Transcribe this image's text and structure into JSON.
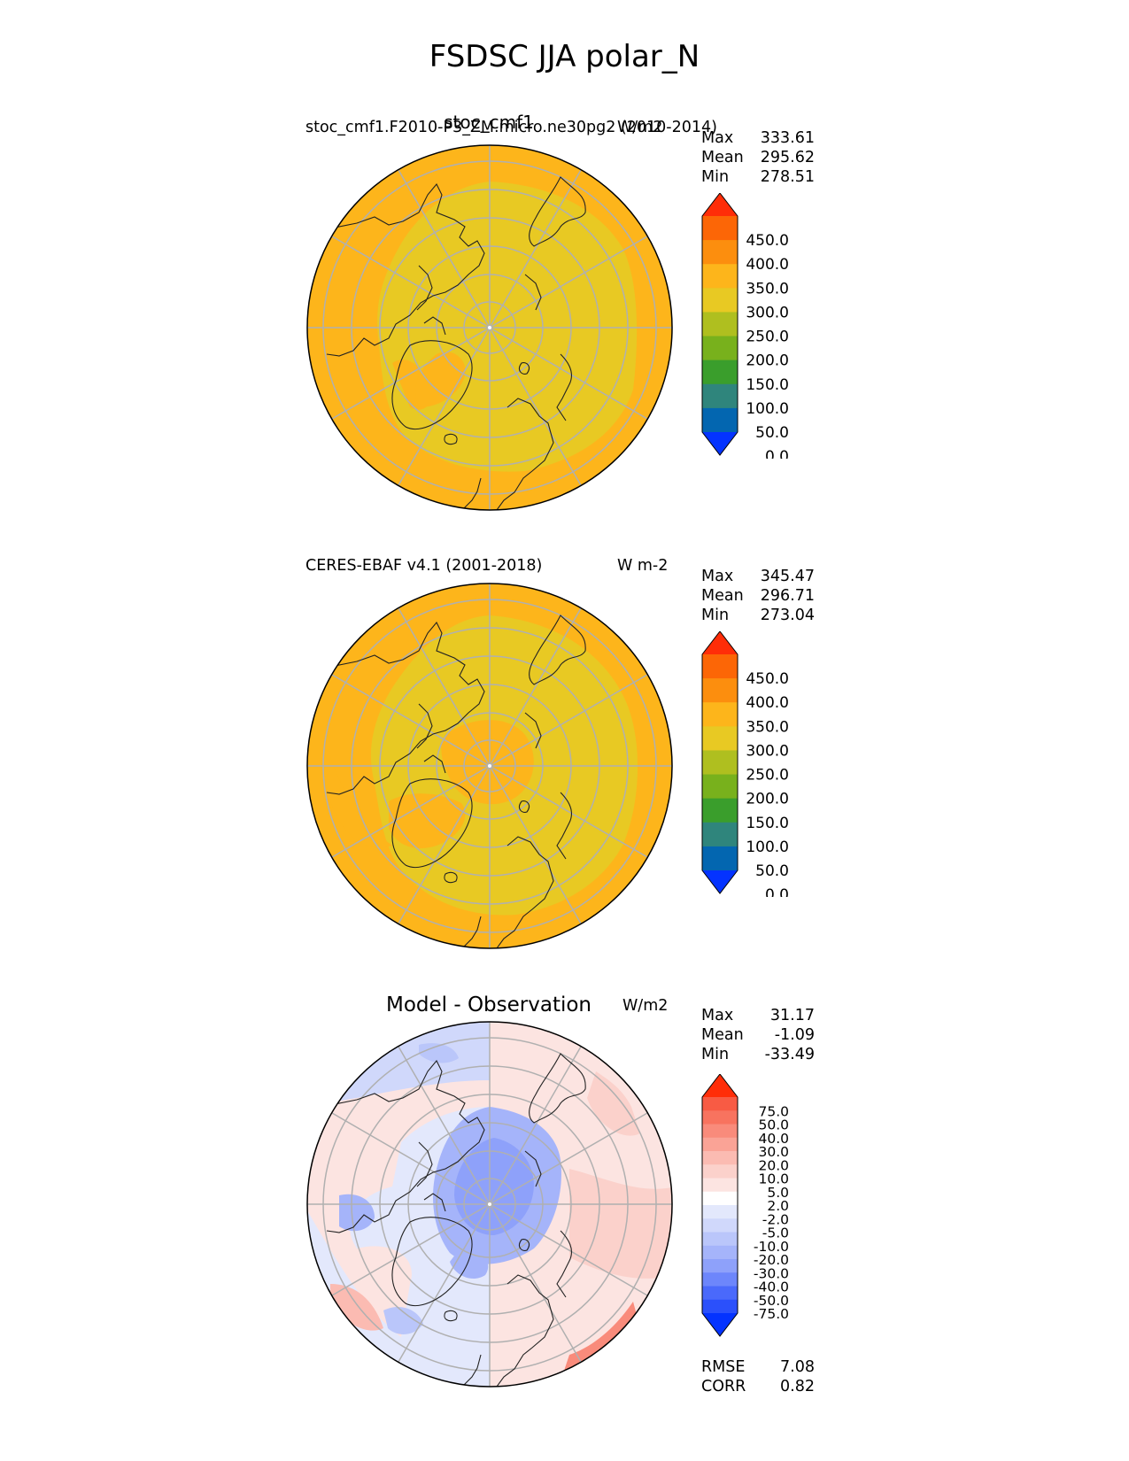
{
  "figure_title": "FSDSC JJA polar_N",
  "colors": {
    "seq_levels": [
      "#0433ff",
      "#0366b0",
      "#2f857c",
      "#3a9e2c",
      "#78b11c",
      "#afbf1f",
      "#e8c923",
      "#fdb51b",
      "#fc8e0e",
      "#fc6606",
      "#ff2d08"
    ],
    "diff_levels": [
      "#0433ff",
      "#2b50fb",
      "#4a69fb",
      "#6d86fb",
      "#8ea1fa",
      "#a5b4fa",
      "#bac6fa",
      "#d0d8fb",
      "#e3e8fc",
      "#ffffff",
      "#fce4e1",
      "#fbd1cb",
      "#fbbbb2",
      "#faa396",
      "#f98b7b",
      "#f8735f",
      "#f85b44",
      "#ff2d08"
    ],
    "gridline": "#b0b0b0",
    "coast": "#222222"
  },
  "panels": [
    {
      "id": "test",
      "center_title": "stoc_cmf1",
      "left_title": "stoc_cmf1.F2010-P3_ZM.micro.ne30pg2 (2010-2014)",
      "right_title": "W/m2",
      "stats": {
        "max_label": "Max",
        "max": "333.61",
        "mean_label": "Mean",
        "mean": "295.62",
        "min_label": "Min",
        "min": "278.51"
      },
      "colorbar_ticks": [
        "450.0",
        "400.0",
        "350.0",
        "300.0",
        "250.0",
        "200.0",
        "150.0",
        "100.0",
        "50.0",
        "0.0"
      ]
    },
    {
      "id": "ref",
      "center_title": "",
      "left_title": "CERES-EBAF v4.1 (2001-2018)",
      "right_title": "W m-2",
      "stats": {
        "max_label": "Max",
        "max": "345.47",
        "mean_label": "Mean",
        "mean": "296.71",
        "min_label": "Min",
        "min": "273.04"
      },
      "colorbar_ticks": [
        "450.0",
        "400.0",
        "350.0",
        "300.0",
        "250.0",
        "200.0",
        "150.0",
        "100.0",
        "50.0",
        "0.0"
      ]
    },
    {
      "id": "diff",
      "center_title": "Model - Observation",
      "left_title": "",
      "right_title": "W/m2",
      "stats": {
        "max_label": "Max",
        "max": "31.17",
        "mean_label": "Mean",
        "mean": "-1.09",
        "min_label": "Min",
        "min": "-33.49"
      },
      "colorbar_ticks": [
        "75.0",
        "50.0",
        "40.0",
        "30.0",
        "20.0",
        "10.0",
        "5.0",
        "2.0",
        "-2.0",
        "-5.0",
        "-10.0",
        "-20.0",
        "-30.0",
        "-40.0",
        "-50.0",
        "-75.0"
      ],
      "metrics": {
        "rmse_label": "RMSE",
        "rmse": "7.08",
        "corr_label": "CORR",
        "corr": "0.82"
      }
    }
  ]
}
